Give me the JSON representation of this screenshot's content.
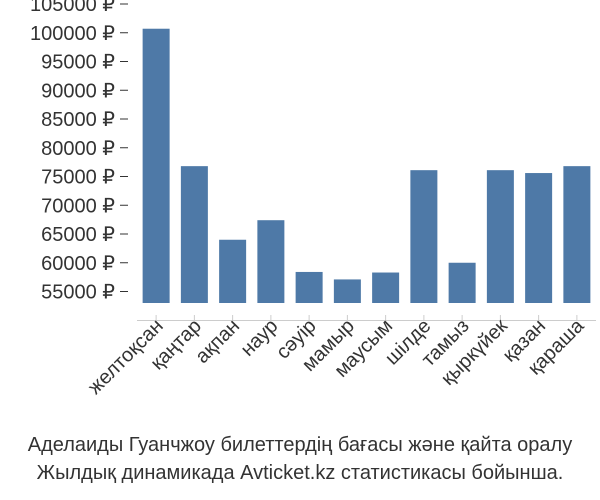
{
  "chart_data": {
    "type": "bar",
    "categories": [
      "желтоқсан",
      "қаңтар",
      "ақпан",
      "наур",
      "сәуір",
      "мамыр",
      "маусым",
      "шілде",
      "тамыз",
      "қыркүйек",
      "қазан",
      "қараша"
    ],
    "values": [
      100700,
      76800,
      64000,
      67400,
      58400,
      57100,
      58300,
      76100,
      60000,
      76100,
      75600,
      76800
    ],
    "yticks": [
      55000,
      60000,
      65000,
      70000,
      75000,
      80000,
      85000,
      90000,
      95000,
      100000,
      105000
    ],
    "ytick_labels": [
      "55000 ₽",
      "60000 ₽",
      "65000 ₽",
      "70000 ₽",
      "75000 ₽",
      "80000 ₽",
      "85000 ₽",
      "90000 ₽",
      "95000 ₽",
      "100000 ₽",
      "105000 ₽"
    ],
    "ylim": [
      53000,
      105000
    ],
    "grid": false,
    "bar_color": "#4e79a7"
  },
  "caption": {
    "line1": "Аделаиды Гуанчжоу билеттердің бағасы және қайта оралу",
    "line2": "Жылдық динамикада Avticket.kz статистикасы бойынша."
  }
}
